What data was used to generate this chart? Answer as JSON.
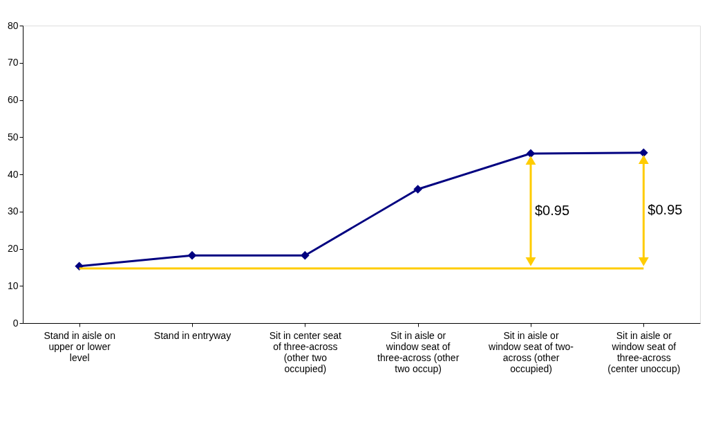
{
  "chart_data": {
    "type": "line",
    "categories": [
      "Stand in aisle on upper or lower level",
      "Stand in entryway",
      "Sit in center seat of three-across (other two occupied)",
      "Sit in aisle or window seat of three-across (other two occup)",
      "Sit in aisle or window seat of two-across (other occupied)",
      "Sit in aisle or window seat of three-across (center unoccup)"
    ],
    "series": [
      {
        "color": "#000080",
        "values": [
          15.3,
          18.2,
          18.2,
          36,
          45.6,
          45.8
        ]
      }
    ],
    "ylim": [
      0,
      80
    ],
    "yticks": [
      0,
      10,
      20,
      30,
      40,
      50,
      60,
      70,
      80
    ],
    "grid": false,
    "marker": "diamond",
    "line_style": "solid",
    "ref_lines": [
      {
        "axis": "y",
        "value": 14.7,
        "color": "#ffcc00"
      }
    ],
    "annotations": [
      "$0.95",
      "$0.95"
    ]
  }
}
